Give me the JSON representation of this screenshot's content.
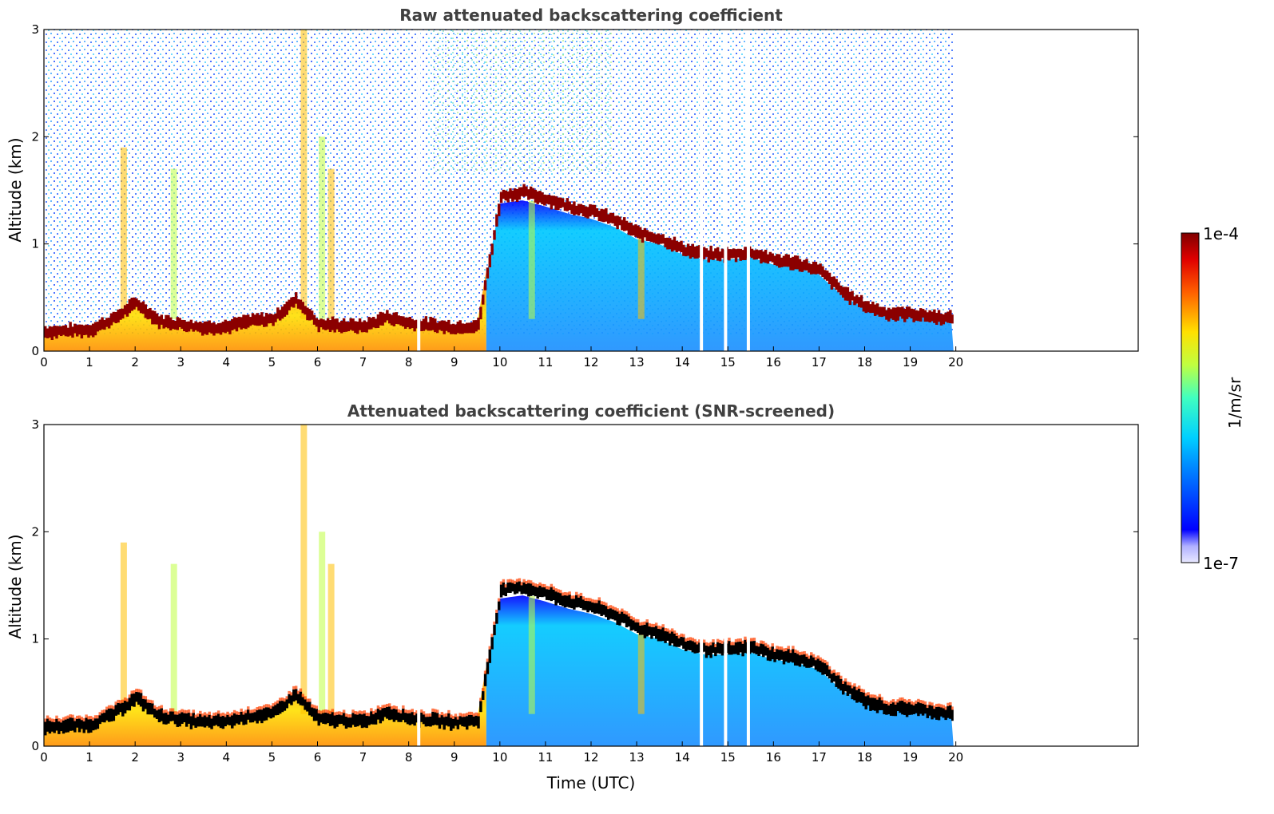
{
  "chart_data": [
    {
      "type": "heatmap",
      "title": "Raw attenuated backscattering coefficient",
      "xlabel": "",
      "ylabel": "Altitude (km)",
      "xlim": [
        0,
        24
      ],
      "ylim": [
        0,
        3
      ],
      "xticks": [
        0,
        1,
        2,
        3,
        4,
        5,
        6,
        7,
        8,
        9,
        10,
        11,
        12,
        13,
        14,
        15,
        16,
        17,
        18,
        19,
        20
      ],
      "yticks": [
        0,
        1,
        2,
        3
      ],
      "data_end_hour": 19.95,
      "gap_hours": [
        8.22,
        14.42,
        14.95,
        15.45
      ],
      "cloud_layer": {
        "x": [
          0,
          1,
          1.5,
          2,
          2.5,
          3,
          3.5,
          4,
          4.5,
          5,
          5.5,
          6,
          6.5,
          7,
          7.5,
          8,
          8.5,
          9,
          9.5,
          10,
          10.5,
          11,
          11.5,
          12,
          12.5,
          13,
          13.5,
          14,
          14.5,
          15,
          15.5,
          16,
          16.5,
          17,
          17.5,
          18,
          18.5,
          19,
          19.5,
          19.95
        ],
        "y": [
          0.18,
          0.2,
          0.3,
          0.45,
          0.28,
          0.25,
          0.22,
          0.23,
          0.28,
          0.3,
          0.48,
          0.25,
          0.24,
          0.23,
          0.32,
          0.26,
          0.24,
          0.22,
          0.24,
          1.45,
          1.48,
          1.42,
          1.35,
          1.3,
          1.22,
          1.1,
          1.05,
          0.95,
          0.9,
          0.9,
          0.92,
          0.85,
          0.82,
          0.75,
          0.55,
          0.42,
          0.35,
          0.35,
          0.32,
          0.3
        ]
      },
      "colorbar": {
        "min": "1e-7",
        "max": "1e-4",
        "label": "1/m/sr",
        "scale": "log"
      }
    },
    {
      "type": "heatmap",
      "title": "Attenuated backscattering coefficient (SNR-screened)",
      "xlabel": "Time (UTC)",
      "ylabel": "Altitude (km)",
      "xlim": [
        0,
        24
      ],
      "ylim": [
        0,
        3
      ],
      "xticks": [
        0,
        1,
        2,
        3,
        4,
        5,
        6,
        7,
        8,
        9,
        10,
        11,
        12,
        13,
        14,
        15,
        16,
        17,
        18,
        19,
        20
      ],
      "yticks": [
        0,
        1,
        2,
        3
      ],
      "data_end_hour": 19.95,
      "gap_hours": [
        8.22,
        14.42,
        14.95,
        15.45
      ],
      "colorbar": {
        "min": "1e-7",
        "max": "1e-4",
        "label": "1/m/sr",
        "scale": "log"
      }
    }
  ]
}
